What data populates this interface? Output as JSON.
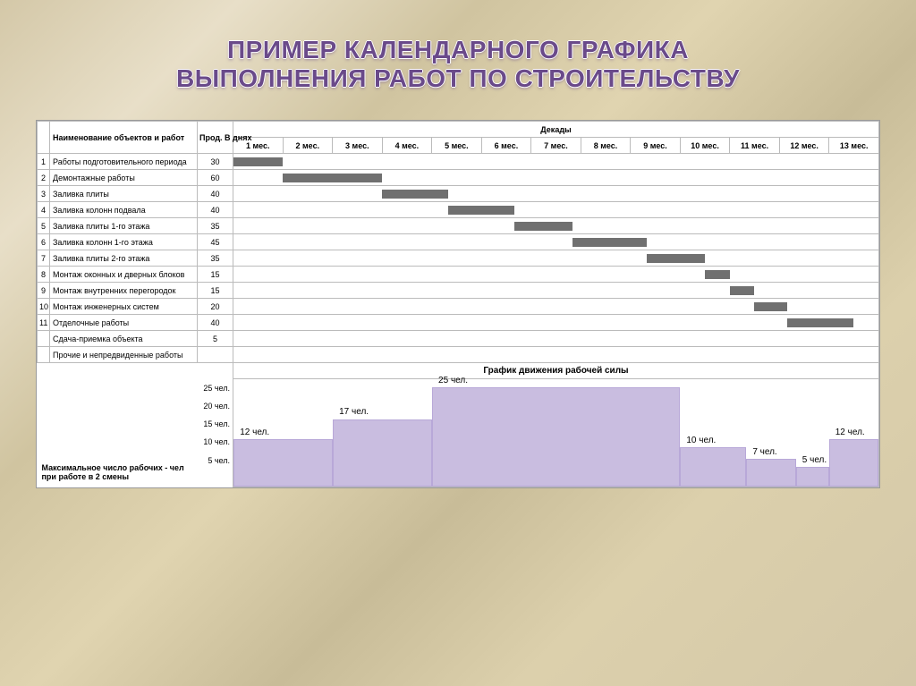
{
  "title_line1": "ПРИМЕР КАЛЕНДАРНОГО ГРАФИКА",
  "title_line2": "ВЫПОЛНЕНИЯ РАБОТ ПО СТРОИТЕЛЬСТВУ",
  "headers": {
    "name": "Наименование объектов и работ",
    "duration": "Прод. В днях",
    "periods": "Декады"
  },
  "months": [
    "1 мес.",
    "2 мес.",
    "3 мес.",
    "4 мес.",
    "5 мес.",
    "6 мес.",
    "7 мес.",
    "8 мес.",
    "9 мес.",
    "10 мес.",
    "11 мес.",
    "12 мес.",
    "13 мес."
  ],
  "total_days": 390,
  "tasks": [
    {
      "num": "1",
      "name": "Работы подготовительного периода",
      "dur": "30",
      "start": 0,
      "len": 30
    },
    {
      "num": "2",
      "name": "Демонтажные работы",
      "dur": "60",
      "start": 30,
      "len": 60
    },
    {
      "num": "3",
      "name": "Заливка плиты",
      "dur": "40",
      "start": 90,
      "len": 40
    },
    {
      "num": "4",
      "name": "Заливка колонн подвала",
      "dur": "40",
      "start": 130,
      "len": 40
    },
    {
      "num": "5",
      "name": "Заливка плиты 1-го этажа",
      "dur": "35",
      "start": 170,
      "len": 35
    },
    {
      "num": "6",
      "name": "Заливка колонн 1-го этажа",
      "dur": "45",
      "start": 205,
      "len": 45
    },
    {
      "num": "7",
      "name": "Заливка плиты 2-го этажа",
      "dur": "35",
      "start": 250,
      "len": 35
    },
    {
      "num": "8",
      "name": "Монтаж оконных и дверных блоков",
      "dur": "15",
      "start": 285,
      "len": 15
    },
    {
      "num": "9",
      "name": "Монтаж внутренних перегородок",
      "dur": "15",
      "start": 300,
      "len": 15
    },
    {
      "num": "10",
      "name": "Монтаж инженерных систем",
      "dur": "20",
      "start": 315,
      "len": 20
    },
    {
      "num": "11",
      "name": "Отделочные работы",
      "dur": "40",
      "start": 335,
      "len": 40
    },
    {
      "num": "",
      "name": "Сдача-приемка объекта",
      "dur": "5",
      "start": null,
      "len": 0
    },
    {
      "num": "",
      "name": "Прочие и непредвиденные работы",
      "dur": "",
      "start": null,
      "len": 0
    }
  ],
  "workforce": {
    "title": "График движения рабочей силы",
    "y_ticks": [
      "25 чел.",
      "20 чел.",
      "15 чел.",
      "10 чел.",
      "5 чел."
    ],
    "note": "Максимальное число рабочих - чел при работе в 2 смены",
    "max_y": 27,
    "segments": [
      {
        "start_day": 0,
        "end_day": 60,
        "value": 12,
        "label": "12 чел."
      },
      {
        "start_day": 60,
        "end_day": 120,
        "value": 17,
        "label": "17 чел."
      },
      {
        "start_day": 120,
        "end_day": 270,
        "value": 25,
        "label": "25 чел."
      },
      {
        "start_day": 270,
        "end_day": 310,
        "value": 10,
        "label": "10 чел."
      },
      {
        "start_day": 310,
        "end_day": 340,
        "value": 7,
        "label": "7 чел."
      },
      {
        "start_day": 340,
        "end_day": 360,
        "value": 5,
        "label": "5 чел."
      },
      {
        "start_day": 360,
        "end_day": 390,
        "value": 12,
        "label": "12 чел."
      }
    ],
    "colors": {
      "bar": "#c9bde0",
      "border": "#b8a8d8",
      "gantt": "#707070"
    }
  }
}
